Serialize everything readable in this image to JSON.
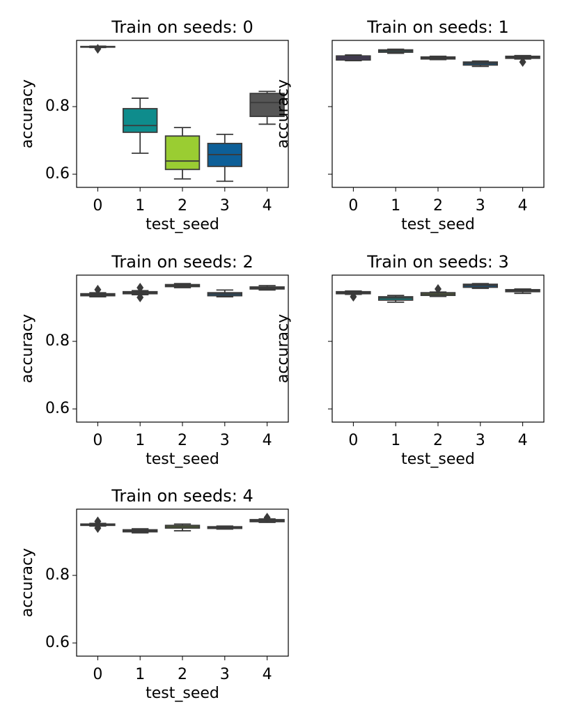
{
  "chart_data": [
    {
      "type": "box",
      "title": "Train on seeds: 0",
      "xlabel": "test_seed",
      "ylabel": "accuracy",
      "categories": [
        "0",
        "1",
        "2",
        "3",
        "4"
      ],
      "colors": [
        "#4a3a6a",
        "#0e8c8c",
        "#9acd32",
        "#0d5f98",
        "#555555"
      ],
      "ylim": [
        0.561,
        0.996
      ],
      "yticks": [
        0.6,
        0.8
      ],
      "show_ytick_labels": true,
      "boxes": [
        {
          "whislo": 0.975,
          "q1": 0.976,
          "med": 0.977,
          "q3": 0.978,
          "whishi": 0.979,
          "fliers": [
            0.971
          ]
        },
        {
          "whislo": 0.662,
          "q1": 0.724,
          "med": 0.744,
          "q3": 0.794,
          "whishi": 0.825,
          "fliers": []
        },
        {
          "whislo": 0.586,
          "q1": 0.614,
          "med": 0.639,
          "q3": 0.713,
          "whishi": 0.738,
          "fliers": []
        },
        {
          "whislo": 0.579,
          "q1": 0.623,
          "med": 0.658,
          "q3": 0.691,
          "whishi": 0.718,
          "fliers": []
        },
        {
          "whislo": 0.748,
          "q1": 0.771,
          "med": 0.812,
          "q3": 0.839,
          "whishi": 0.845,
          "fliers": []
        }
      ]
    },
    {
      "type": "box",
      "title": "Train on seeds: 1",
      "xlabel": "test_seed",
      "ylabel": "accuracy",
      "categories": [
        "0",
        "1",
        "2",
        "3",
        "4"
      ],
      "colors": [
        "#4a3a6a",
        "#0e8c8c",
        "#9acd32",
        "#0d5f98",
        "#555555"
      ],
      "ylim": [
        0.561,
        0.996
      ],
      "yticks": [
        0.6,
        0.8
      ],
      "show_ytick_labels": false,
      "boxes": [
        {
          "whislo": 0.936,
          "q1": 0.938,
          "med": 0.944,
          "q3": 0.95,
          "whishi": 0.953,
          "fliers": []
        },
        {
          "whislo": 0.958,
          "q1": 0.961,
          "med": 0.965,
          "q3": 0.968,
          "whishi": 0.97,
          "fliers": []
        },
        {
          "whislo": 0.939,
          "q1": 0.941,
          "med": 0.944,
          "q3": 0.947,
          "whishi": 0.949,
          "fliers": []
        },
        {
          "whislo": 0.919,
          "q1": 0.923,
          "med": 0.928,
          "q3": 0.932,
          "whishi": 0.935,
          "fliers": []
        },
        {
          "whislo": 0.941,
          "q1": 0.943,
          "med": 0.946,
          "q3": 0.949,
          "whishi": 0.951,
          "fliers": [
            0.932
          ]
        }
      ]
    },
    {
      "type": "box",
      "title": "Train on seeds: 2",
      "xlabel": "test_seed",
      "ylabel": "accuracy",
      "categories": [
        "0",
        "1",
        "2",
        "3",
        "4"
      ],
      "colors": [
        "#4a3a6a",
        "#0e8c8c",
        "#9acd32",
        "#0d5f98",
        "#555555"
      ],
      "ylim": [
        0.561,
        0.996
      ],
      "yticks": [
        0.6,
        0.8
      ],
      "show_ytick_labels": true,
      "boxes": [
        {
          "whislo": 0.932,
          "q1": 0.935,
          "med": 0.938,
          "q3": 0.941,
          "whishi": 0.944,
          "fliers": [
            0.953
          ]
        },
        {
          "whislo": 0.938,
          "q1": 0.941,
          "med": 0.944,
          "q3": 0.947,
          "whishi": 0.95,
          "fliers": [
            0.959,
            0.93
          ]
        },
        {
          "whislo": 0.959,
          "q1": 0.962,
          "med": 0.965,
          "q3": 0.968,
          "whishi": 0.971,
          "fliers": []
        },
        {
          "whislo": 0.932,
          "q1": 0.935,
          "med": 0.94,
          "q3": 0.944,
          "whishi": 0.952,
          "fliers": []
        },
        {
          "whislo": 0.952,
          "q1": 0.955,
          "med": 0.959,
          "q3": 0.961,
          "whishi": 0.965,
          "fliers": []
        }
      ]
    },
    {
      "type": "box",
      "title": "Train on seeds: 3",
      "xlabel": "test_seed",
      "ylabel": "accuracy",
      "categories": [
        "0",
        "1",
        "2",
        "3",
        "4"
      ],
      "colors": [
        "#4a3a6a",
        "#0e8c8c",
        "#9acd32",
        "#0d5f98",
        "#555555"
      ],
      "ylim": [
        0.561,
        0.996
      ],
      "yticks": [
        0.6,
        0.8
      ],
      "show_ytick_labels": false,
      "boxes": [
        {
          "whislo": 0.939,
          "q1": 0.941,
          "med": 0.944,
          "q3": 0.947,
          "whishi": 0.949,
          "fliers": [
            0.932
          ]
        },
        {
          "whislo": 0.916,
          "q1": 0.922,
          "med": 0.928,
          "q3": 0.932,
          "whishi": 0.936,
          "fliers": []
        },
        {
          "whislo": 0.933,
          "q1": 0.936,
          "med": 0.94,
          "q3": 0.944,
          "whishi": 0.946,
          "fliers": [
            0.955
          ]
        },
        {
          "whislo": 0.957,
          "q1": 0.96,
          "med": 0.965,
          "q3": 0.969,
          "whishi": 0.971,
          "fliers": []
        },
        {
          "whislo": 0.942,
          "q1": 0.947,
          "med": 0.95,
          "q3": 0.953,
          "whishi": 0.955,
          "fliers": []
        }
      ]
    },
    {
      "type": "box",
      "title": "Train on seeds: 4",
      "xlabel": "test_seed",
      "ylabel": "accuracy",
      "categories": [
        "0",
        "1",
        "2",
        "3",
        "4"
      ],
      "colors": [
        "#4a3a6a",
        "#0e8c8c",
        "#9acd32",
        "#0d5f98",
        "#555555"
      ],
      "ylim": [
        0.561,
        0.996
      ],
      "yticks": [
        0.6,
        0.8
      ],
      "show_ytick_labels": true,
      "boxes": [
        {
          "whislo": 0.946,
          "q1": 0.948,
          "med": 0.95,
          "q3": 0.952,
          "whishi": 0.954,
          "fliers": [
            0.96,
            0.94
          ]
        },
        {
          "whislo": 0.926,
          "q1": 0.929,
          "med": 0.932,
          "q3": 0.935,
          "whishi": 0.938,
          "fliers": []
        },
        {
          "whislo": 0.932,
          "q1": 0.94,
          "med": 0.944,
          "q3": 0.948,
          "whishi": 0.952,
          "fliers": []
        },
        {
          "whislo": 0.937,
          "q1": 0.939,
          "med": 0.942,
          "q3": 0.944,
          "whishi": 0.946,
          "fliers": []
        },
        {
          "whislo": 0.957,
          "q1": 0.959,
          "med": 0.963,
          "q3": 0.965,
          "whishi": 0.967,
          "fliers": [
            0.971
          ]
        }
      ]
    }
  ]
}
